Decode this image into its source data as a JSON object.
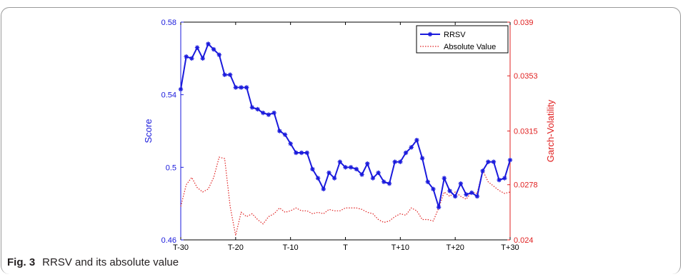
{
  "chart_data": {
    "type": "line",
    "title": "",
    "xlabel": "",
    "ylabel": "Score",
    "y2label": "Garch-Volatility",
    "x_ticks": [
      "T-30",
      "T-20",
      "T-10",
      "T",
      "T+10",
      "T+20",
      "T+30"
    ],
    "x": [
      -30,
      -29,
      -28,
      -27,
      -26,
      -25,
      -24,
      -23,
      -22,
      -21,
      -20,
      -19,
      -18,
      -17,
      -16,
      -15,
      -14,
      -13,
      -12,
      -11,
      -10,
      -9,
      -8,
      -7,
      -6,
      -5,
      -4,
      -3,
      -2,
      -1,
      0,
      1,
      2,
      3,
      4,
      5,
      6,
      7,
      8,
      9,
      10,
      11,
      12,
      13,
      14,
      15,
      16,
      17,
      18,
      19,
      20,
      21,
      22,
      23,
      24,
      25,
      26,
      27,
      28,
      29,
      30
    ],
    "ylim": [
      0.46,
      0.58
    ],
    "y_ticks": [
      "0.46",
      "0.5",
      "0.54",
      "0.58"
    ],
    "y2lim": [
      0.024,
      0.039
    ],
    "y2_ticks": [
      "0.024",
      "0.0278",
      "0.0315",
      "0.0353",
      "0.039"
    ],
    "grid": false,
    "legend_position": "top-right",
    "colors": {
      "RRSV": "#1a1adc",
      "Absolute Value": "#e02020"
    },
    "series": [
      {
        "name": "RRSV",
        "axis": "left",
        "style": "solid-star",
        "values": [
          0.543,
          0.561,
          0.56,
          0.566,
          0.56,
          0.568,
          0.565,
          0.562,
          0.551,
          0.551,
          0.544,
          0.544,
          0.544,
          0.533,
          0.532,
          0.53,
          0.529,
          0.53,
          0.52,
          0.518,
          0.513,
          0.508,
          0.508,
          0.508,
          0.499,
          0.494,
          0.488,
          0.497,
          0.494,
          0.503,
          0.5,
          0.5,
          0.499,
          0.496,
          0.502,
          0.494,
          0.497,
          0.492,
          0.491,
          0.503,
          0.503,
          0.508,
          0.511,
          0.515,
          0.505,
          0.492,
          0.488,
          0.478,
          0.494,
          0.487,
          0.484,
          0.491,
          0.485,
          0.486,
          0.484,
          0.498,
          0.503,
          0.503,
          0.493,
          0.494,
          0.504
        ]
      },
      {
        "name": "Absolute Value",
        "axis": "right",
        "style": "dotted",
        "values": [
          0.0263,
          0.0278,
          0.0283,
          0.0276,
          0.0273,
          0.0275,
          0.0283,
          0.0297,
          0.0296,
          0.0263,
          0.0243,
          0.0259,
          0.0256,
          0.0258,
          0.0254,
          0.0251,
          0.0256,
          0.0258,
          0.0262,
          0.0259,
          0.026,
          0.0262,
          0.026,
          0.026,
          0.0258,
          0.0259,
          0.0258,
          0.0261,
          0.026,
          0.026,
          0.0262,
          0.0262,
          0.0262,
          0.0261,
          0.0259,
          0.0258,
          0.0254,
          0.0252,
          0.0253,
          0.0256,
          0.0258,
          0.0257,
          0.0262,
          0.026,
          0.0254,
          0.0254,
          0.0253,
          0.0262,
          0.0273,
          0.027,
          0.0273,
          0.027,
          0.0268,
          0.0273,
          0.0272,
          0.0288,
          0.028,
          0.0277,
          0.0274,
          0.0272,
          0.0273
        ]
      }
    ]
  },
  "caption": {
    "label": "Fig. 3",
    "text": "RRSV and its absolute value"
  }
}
